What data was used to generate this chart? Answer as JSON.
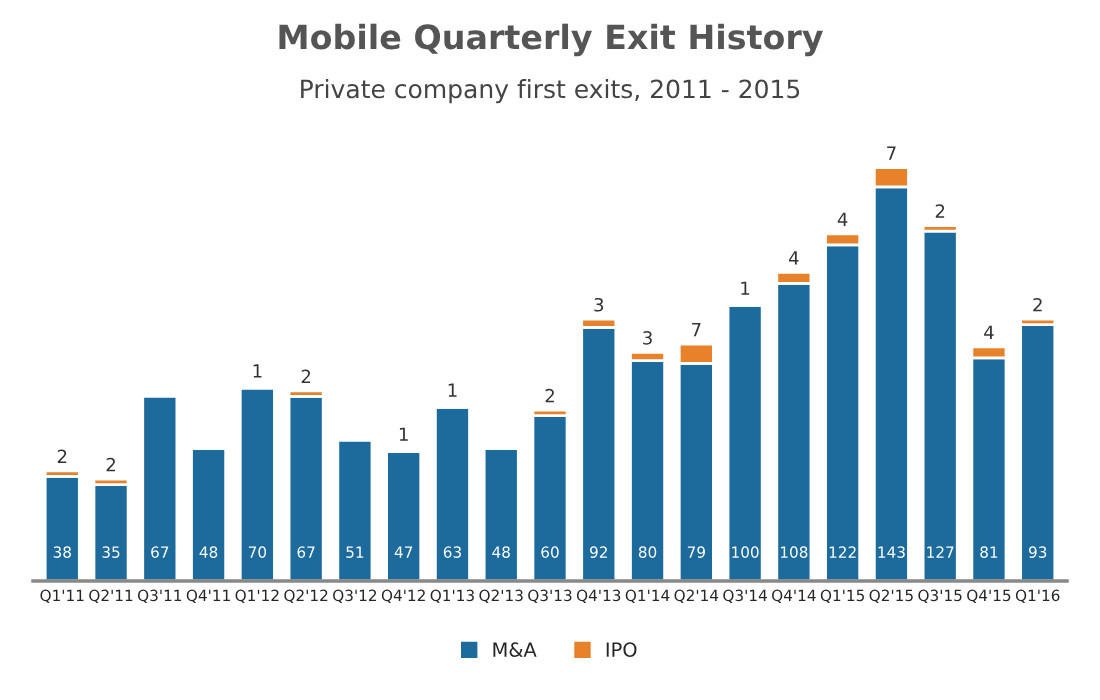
{
  "chart_data": {
    "type": "bar",
    "title": "Mobile Quarterly Exit History",
    "subtitle": "Private company first exits, 2011 - 2015",
    "categories": [
      "Q1'11",
      "Q2'11",
      "Q3'11",
      "Q4'11",
      "Q1'12",
      "Q2'12",
      "Q3'12",
      "Q4'12",
      "Q1'13",
      "Q2'13",
      "Q3'13",
      "Q4'13",
      "Q1'14",
      "Q2'14",
      "Q3'14",
      "Q4'14",
      "Q1'15",
      "Q2'15",
      "Q3'15",
      "Q4'15",
      "Q1'16"
    ],
    "stacked": true,
    "data_labels": true,
    "legend": "bottom",
    "series": [
      {
        "name": "M&A",
        "color": "#1d6b9c",
        "values": [
          38,
          35,
          67,
          48,
          70,
          67,
          51,
          47,
          63,
          48,
          60,
          92,
          80,
          79,
          100,
          108,
          122,
          143,
          127,
          81,
          93
        ]
      },
      {
        "name": "IPO",
        "color": "#e8822a",
        "values": [
          2,
          2,
          null,
          null,
          1,
          2,
          null,
          1,
          1,
          null,
          2,
          3,
          3,
          7,
          1,
          4,
          4,
          7,
          2,
          4,
          2
        ]
      }
    ]
  }
}
